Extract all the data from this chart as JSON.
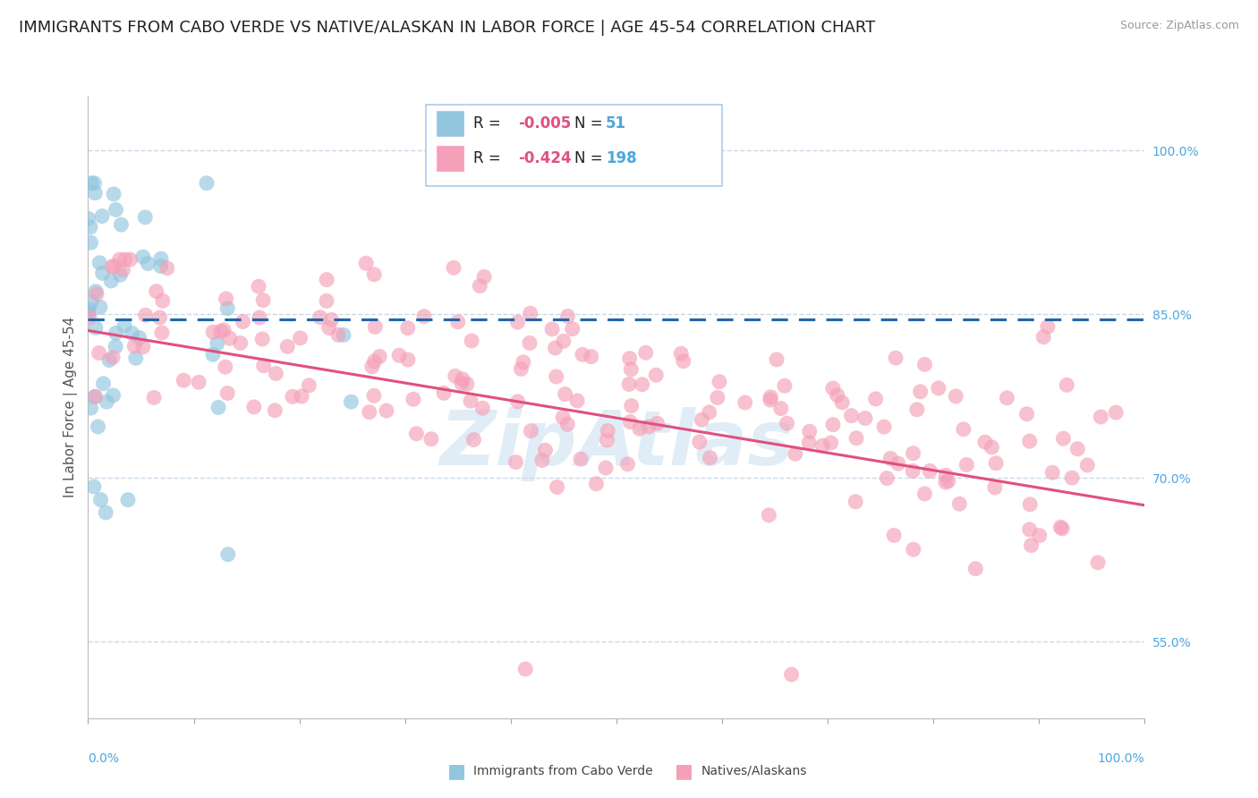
{
  "title": "IMMIGRANTS FROM CABO VERDE VS NATIVE/ALASKAN IN LABOR FORCE | AGE 45-54 CORRELATION CHART",
  "source": "Source: ZipAtlas.com",
  "ylabel": "In Labor Force | Age 45-54",
  "right_yticks": [
    0.55,
    0.7,
    0.85,
    1.0
  ],
  "right_ytick_labels": [
    "55.0%",
    "70.0%",
    "85.0%",
    "100.0%"
  ],
  "cabo_R": -0.005,
  "cabo_N": 51,
  "native_R": -0.424,
  "native_N": 198,
  "cabo_color": "#92c5de",
  "native_color": "#f4a0b8",
  "cabo_line_color": "#2166ac",
  "native_line_color": "#e05080",
  "xlim": [
    0.0,
    1.0
  ],
  "ylim": [
    0.48,
    1.05
  ],
  "background_color": "#ffffff",
  "grid_color": "#c8d8e8",
  "title_fontsize": 13,
  "axis_label_fontsize": 11,
  "tick_fontsize": 10,
  "legend_fontsize": 12,
  "cabo_line_start_y": 0.845,
  "cabo_line_end_y": 0.845,
  "native_line_start_y": 0.835,
  "native_line_end_y": 0.675,
  "watermark_text": "ZipAtlas",
  "watermark_color": "#c8dff0",
  "legend_r1": "-0.005",
  "legend_n1": "51",
  "legend_r2": "-0.424",
  "legend_n2": "198",
  "legend_label1": "Immigrants from Cabo Verde",
  "legend_label2": "Natives/Alaskans"
}
